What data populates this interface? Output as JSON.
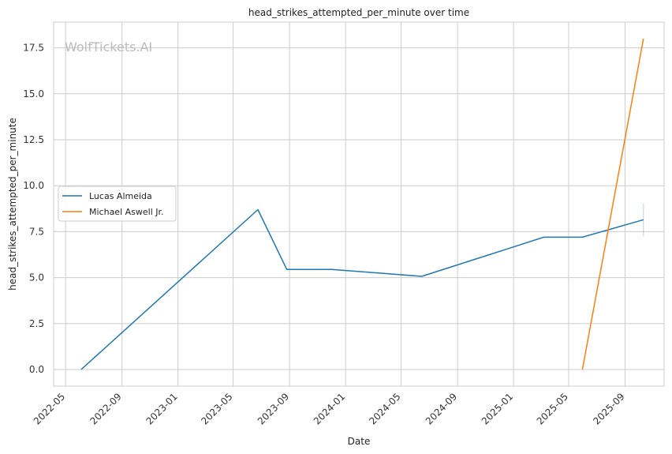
{
  "chart_data": {
    "type": "line",
    "title": "head_strikes_attempted_per_minute over time",
    "xlabel": "Date",
    "ylabel": "head_strikes_attempted_per_minute",
    "watermark": "WolfTickets.AI",
    "x_ticks": [
      "2022-05",
      "2022-09",
      "2023-01",
      "2023-05",
      "2023-09",
      "2024-01",
      "2024-05",
      "2024-09",
      "2025-01",
      "2025-05",
      "2025-09"
    ],
    "y_ticks": [
      "0.0",
      "2.5",
      "5.0",
      "7.5",
      "10.0",
      "12.5",
      "15.0",
      "17.5"
    ],
    "xlim": [
      "2022-04-05",
      "2025-11-25"
    ],
    "ylim": [
      -0.9,
      18.9
    ],
    "grid": true,
    "legend_position": "center-left",
    "series": [
      {
        "name": "Lucas Almeida",
        "color": "#1f77b4",
        "x": [
          "2022-06-04",
          "2023-06-24",
          "2023-08-26",
          "2023-12-02",
          "2024-06-15",
          "2025-03-08",
          "2025-05-31",
          "2025-10-11"
        ],
        "y": [
          0.0,
          8.7,
          5.45,
          5.45,
          5.07,
          7.2,
          7.2,
          8.15
        ],
        "error_bar": {
          "x": "2025-10-11",
          "low": 7.25,
          "high": 9.05
        }
      },
      {
        "name": "Michael Aswell Jr.",
        "color": "#ff7f0e",
        "x": [
          "2025-05-31",
          "2025-10-11"
        ],
        "y": [
          0.0,
          18.0
        ]
      }
    ]
  }
}
